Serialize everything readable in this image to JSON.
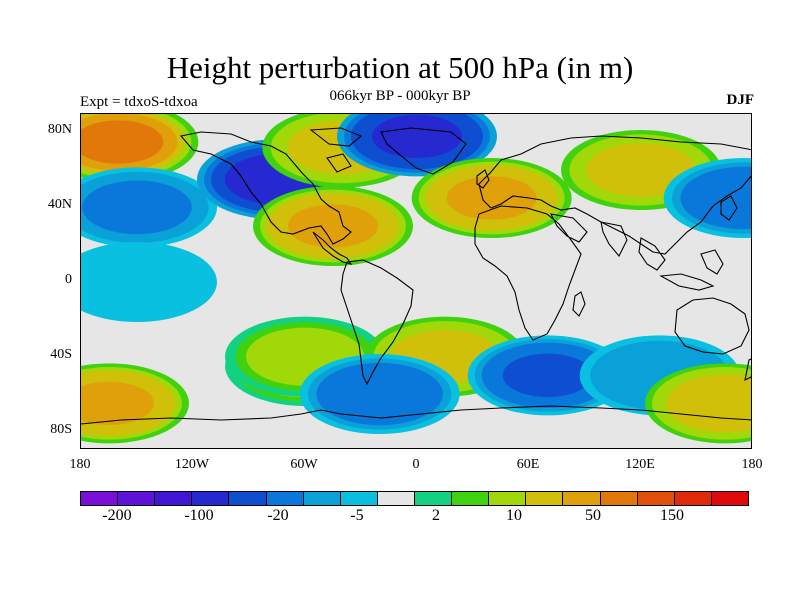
{
  "title": "Height perturbation at 500 hPa (in m)",
  "subtitle": "066kyr BP - 000kyr BP",
  "left_label": "Expt = tdxoS-tdxoa",
  "right_label": "DJF",
  "lat_ticks": [
    "80N",
    "40N",
    "0",
    "40S",
    "80S"
  ],
  "lon_ticks": [
    "180",
    "120W",
    "60W",
    "0",
    "60E",
    "120E",
    "180"
  ],
  "colorbar": {
    "colors": [
      "#7a0fd8",
      "#5f12d8",
      "#4015d4",
      "#2628d0",
      "#0d4fd0",
      "#0a78db",
      "#0aa0d8",
      "#0ac0e0",
      "#e6e6e6",
      "#12d282",
      "#40d20e",
      "#a0d80a",
      "#d0c00a",
      "#e0a00a",
      "#e0780a",
      "#e0500a",
      "#e02a0a",
      "#e00a0a"
    ],
    "labels": [
      "-200",
      "-100",
      "-20",
      "-5",
      "2",
      "10",
      "50",
      "150"
    ]
  },
  "chart_data": {
    "type": "heatmap",
    "title": "Height perturbation at 500 hPa (in m)",
    "subtitle": "066kyr BP - 000kyr BP",
    "x_ticks": [
      "180",
      "120W",
      "60W",
      "0",
      "60E",
      "120E",
      "180"
    ],
    "y_ticks": [
      "80N",
      "40N",
      "0",
      "40S",
      "80S"
    ],
    "xlim": [
      -180,
      180
    ],
    "ylim": [
      -90,
      90
    ],
    "levels": [
      -200,
      -100,
      -20,
      -5,
      2,
      10,
      50,
      150
    ],
    "features": [
      {
        "lon": -160,
        "lat": 75,
        "value": 100
      },
      {
        "lon": -150,
        "lat": 40,
        "value": -30
      },
      {
        "lon": -75,
        "lat": 55,
        "value": -150
      },
      {
        "lon": -45,
        "lat": 30,
        "value": 60
      },
      {
        "lon": -40,
        "lat": 72,
        "value": 40
      },
      {
        "lon": 0,
        "lat": 78,
        "value": -120
      },
      {
        "lon": 40,
        "lat": 45,
        "value": 60
      },
      {
        "lon": 120,
        "lat": 60,
        "value": 40
      },
      {
        "lon": 175,
        "lat": 45,
        "value": -40
      },
      {
        "lon": -150,
        "lat": 0,
        "value": -10
      },
      {
        "lon": -60,
        "lat": -45,
        "value": 30
      },
      {
        "lon": -60,
        "lat": -40,
        "value": 20
      },
      {
        "lon": 15,
        "lat": -40,
        "value": 40
      },
      {
        "lon": 70,
        "lat": -50,
        "value": -60
      },
      {
        "lon": 130,
        "lat": -50,
        "value": -20
      },
      {
        "lon": -165,
        "lat": -65,
        "value": 60
      },
      {
        "lon": 165,
        "lat": -65,
        "value": 50
      },
      {
        "lon": -20,
        "lat": -60,
        "value": -40
      }
    ]
  }
}
